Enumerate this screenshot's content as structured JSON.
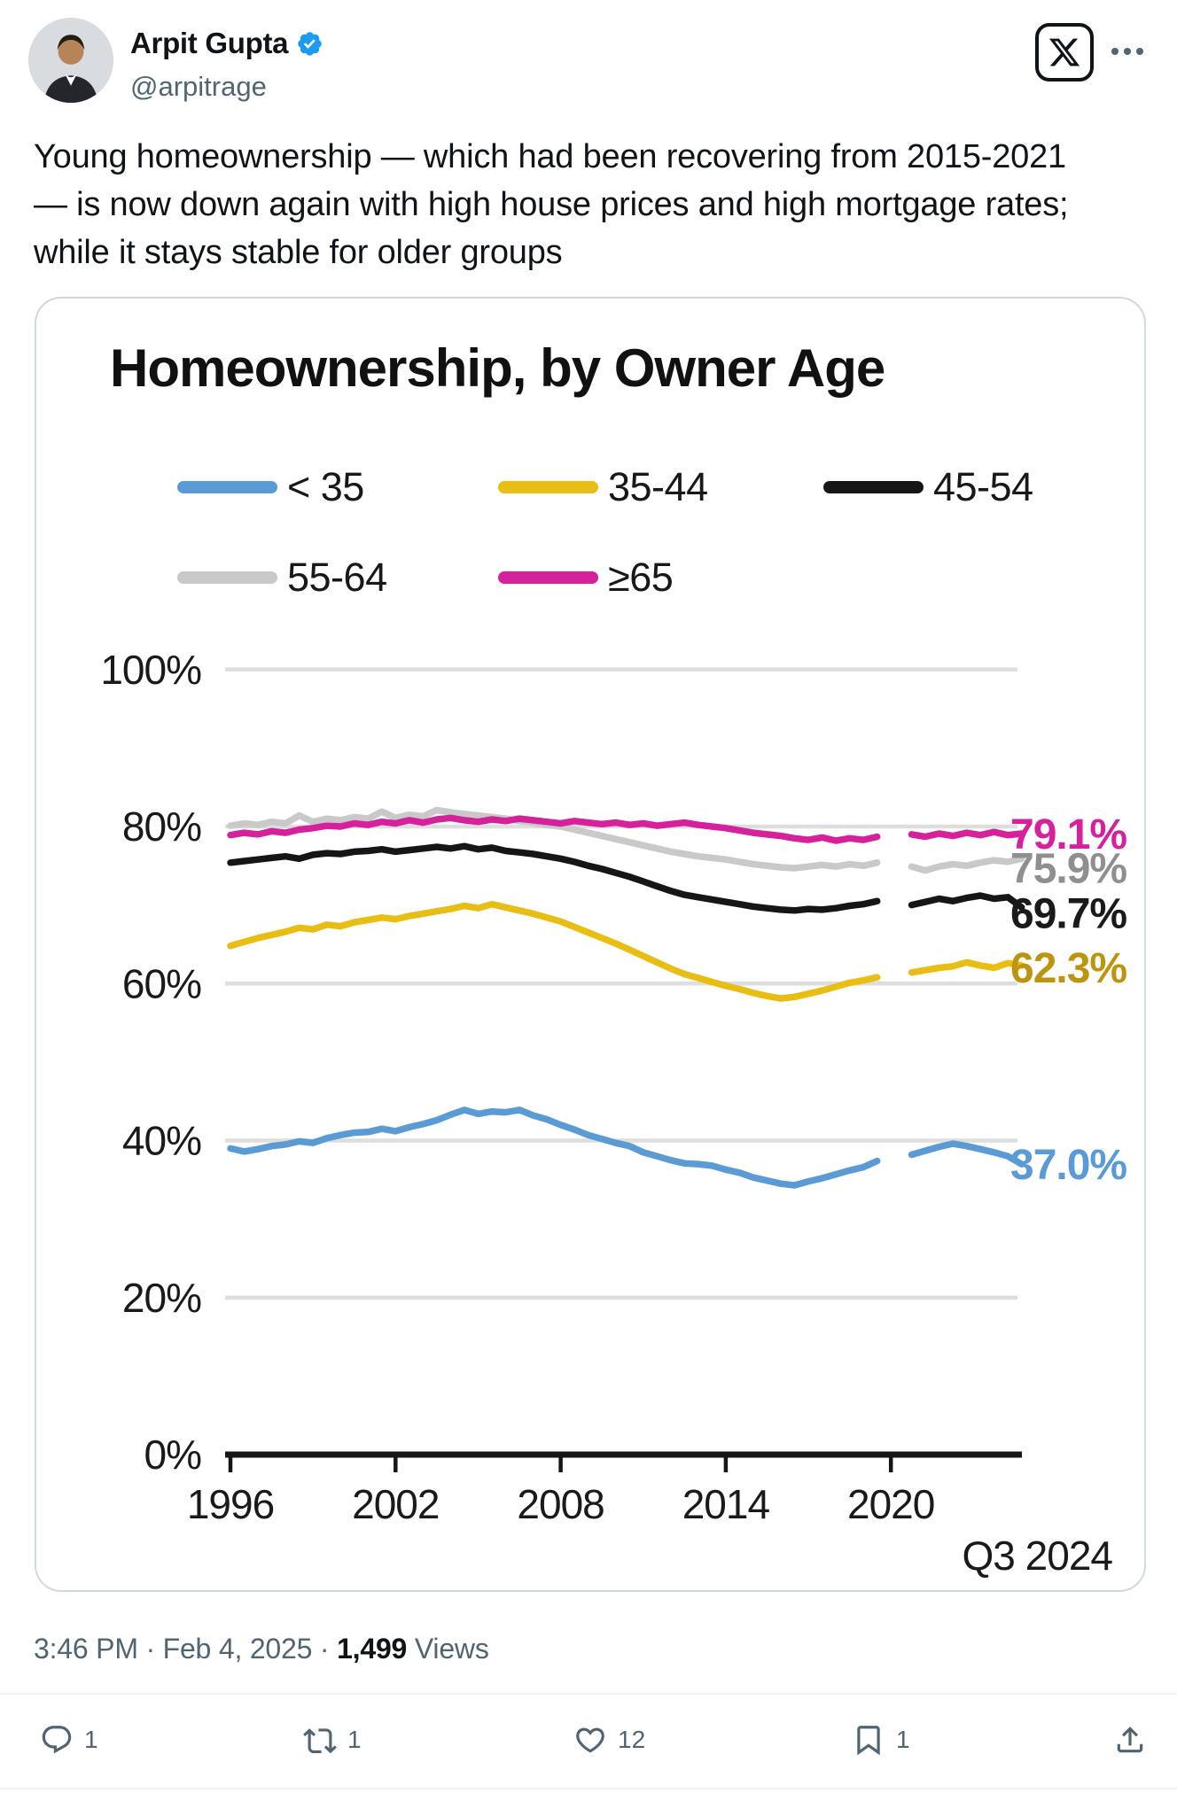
{
  "colors": {
    "accent": "#1d9bf0",
    "text": "#0f1419",
    "secondary": "#536471",
    "card_border": "#cfd9de",
    "divider": "#eff3f4",
    "gridline": "#dedede",
    "axis": "#161616"
  },
  "post": {
    "author": {
      "name": "Arpit Gupta",
      "handle": "@arpitrage",
      "verified_icon": "verified-badge"
    },
    "source_icon": "x-logo",
    "more_icon": "ellipsis",
    "text": "Young homeownership — which had been recovering from 2015-2021\n— is now down again with high house prices and high mortgage rates;\nwhile it stays stable for older groups",
    "timestamp": "3:46 PM · Feb 4, 2025",
    "separator": " · ",
    "views_count": "1,499",
    "views_label": " Views",
    "actions": [
      {
        "name": "reply",
        "icon": "speech-bubble-icon",
        "count": "1"
      },
      {
        "name": "repost",
        "icon": "retweet-icon",
        "count": "1"
      },
      {
        "name": "like",
        "icon": "heart-icon",
        "count": "12"
      },
      {
        "name": "bookmark",
        "icon": "bookmark-icon",
        "count": "1"
      },
      {
        "name": "share",
        "icon": "upload-arrow-icon",
        "count": ""
      }
    ]
  },
  "chart_data": {
    "type": "line",
    "title": "Homeownership, by Owner Age",
    "x_axis": {
      "tick_labels": [
        "1996",
        "2002",
        "2008",
        "2014",
        "2020"
      ],
      "tick_years": [
        1996,
        2002,
        2008,
        2014,
        2020
      ],
      "range": [
        1996,
        2024.75
      ],
      "end_annotation": "Q3 2024"
    },
    "y_axis": {
      "tick_labels": [
        "100%",
        "80%",
        "60%",
        "40%",
        "20%",
        "0%"
      ],
      "tick_values": [
        100,
        80,
        60,
        40,
        20,
        0
      ],
      "range": [
        0,
        100
      ],
      "gridlines": true
    },
    "data_gap_years": [
      2019.75,
      2020.6
    ],
    "legend_rows": [
      [
        "< 35",
        "35-44",
        "45-54"
      ],
      [
        "55-64",
        "≥65"
      ]
    ],
    "series": [
      {
        "name": "< 35",
        "color": "#5b9bd5",
        "end_label": "37.0%",
        "end_label_color": "#5b9bd5",
        "x_start": 1996,
        "x_step": 0.5,
        "values_pre_gap": [
          39.0,
          38.6,
          38.9,
          39.3,
          39.5,
          39.9,
          39.7,
          40.3,
          40.7,
          41.0,
          41.1,
          41.5,
          41.2,
          41.7,
          42.1,
          42.6,
          43.3,
          43.9,
          43.4,
          43.7,
          43.6,
          43.9,
          43.2,
          42.7,
          42.0,
          41.4,
          40.7,
          40.2,
          39.7,
          39.3,
          38.5,
          38.0,
          37.5,
          37.1,
          37.0,
          36.8,
          36.3,
          35.9,
          35.3,
          34.9,
          34.5,
          34.3,
          34.8,
          35.2,
          35.7,
          36.2,
          36.6,
          37.4
        ],
        "x_resume": 2020.75,
        "values_post_gap": [
          38.2,
          38.7,
          39.2,
          39.6,
          39.3,
          38.9,
          38.5,
          38.0,
          37.0
        ]
      },
      {
        "name": "35-44",
        "color": "#e8be14",
        "end_label": "62.3%",
        "end_label_color": "#bd940f",
        "x_start": 1996,
        "x_step": 0.5,
        "values_pre_gap": [
          64.8,
          65.3,
          65.8,
          66.2,
          66.6,
          67.1,
          66.9,
          67.5,
          67.3,
          67.8,
          68.1,
          68.4,
          68.2,
          68.6,
          68.9,
          69.2,
          69.5,
          69.9,
          69.6,
          70.1,
          69.7,
          69.3,
          68.9,
          68.4,
          67.9,
          67.2,
          66.5,
          65.8,
          65.1,
          64.3,
          63.5,
          62.7,
          61.9,
          61.2,
          60.7,
          60.2,
          59.7,
          59.3,
          58.8,
          58.4,
          58.1,
          58.3,
          58.7,
          59.1,
          59.6,
          60.1,
          60.4,
          60.8
        ],
        "x_resume": 2020.75,
        "values_post_gap": [
          61.4,
          61.7,
          62.0,
          62.2,
          62.7,
          62.3,
          62.0,
          62.6,
          62.3
        ]
      },
      {
        "name": "45-54",
        "color": "#161616",
        "end_label": "69.7%",
        "end_label_color": "#1a1a1a",
        "x_start": 1996,
        "x_step": 0.5,
        "values_pre_gap": [
          75.4,
          75.6,
          75.8,
          76.0,
          76.2,
          75.9,
          76.4,
          76.6,
          76.5,
          76.8,
          76.9,
          77.1,
          76.8,
          77.0,
          77.2,
          77.4,
          77.2,
          77.5,
          77.1,
          77.3,
          76.9,
          76.7,
          76.5,
          76.2,
          75.9,
          75.5,
          75.0,
          74.6,
          74.1,
          73.6,
          73.0,
          72.4,
          71.8,
          71.3,
          71.0,
          70.7,
          70.4,
          70.1,
          69.8,
          69.6,
          69.4,
          69.3,
          69.5,
          69.4,
          69.6,
          69.9,
          70.1,
          70.5
        ],
        "x_resume": 2020.75,
        "values_post_gap": [
          70.0,
          70.4,
          70.8,
          70.5,
          70.9,
          71.2,
          70.8,
          71.0,
          69.7
        ]
      },
      {
        "name": "55-64",
        "color": "#c9c9c9",
        "end_label": "75.9%",
        "end_label_color": "#8f8f8f",
        "x_start": 1996,
        "x_step": 0.5,
        "values_pre_gap": [
          80.1,
          80.4,
          80.2,
          80.6,
          80.4,
          81.4,
          80.6,
          81.0,
          80.8,
          81.2,
          81.0,
          81.9,
          81.1,
          81.5,
          81.3,
          82.1,
          81.8,
          81.6,
          81.4,
          81.2,
          81.0,
          80.7,
          80.5,
          80.2,
          80.0,
          79.6,
          79.2,
          78.8,
          78.4,
          78.0,
          77.6,
          77.2,
          76.8,
          76.5,
          76.2,
          76.0,
          75.8,
          75.5,
          75.2,
          75.0,
          74.8,
          74.7,
          74.9,
          75.1,
          74.9,
          75.2,
          75.0,
          75.4
        ],
        "x_resume": 2020.75,
        "values_post_gap": [
          74.9,
          74.4,
          74.9,
          75.2,
          75.0,
          75.4,
          75.7,
          75.5,
          75.9
        ]
      },
      {
        "name": "≥65",
        "color": "#d6219c",
        "end_label": "79.1%",
        "end_label_color": "#d6219c",
        "x_start": 1996,
        "x_step": 0.5,
        "values_pre_gap": [
          78.9,
          79.2,
          79.0,
          79.4,
          79.2,
          79.6,
          79.8,
          80.1,
          80.0,
          80.4,
          80.2,
          80.6,
          80.4,
          80.8,
          80.5,
          80.9,
          81.1,
          80.8,
          80.6,
          80.9,
          80.7,
          81.0,
          80.8,
          80.6,
          80.4,
          80.7,
          80.5,
          80.3,
          80.5,
          80.2,
          80.4,
          80.1,
          80.3,
          80.5,
          80.2,
          80.0,
          79.8,
          79.5,
          79.2,
          79.0,
          78.8,
          78.5,
          78.3,
          78.6,
          78.2,
          78.5,
          78.3,
          78.7
        ],
        "x_resume": 2020.75,
        "values_post_gap": [
          79.0,
          78.7,
          79.1,
          78.8,
          79.2,
          78.9,
          79.3,
          78.9,
          79.1
        ]
      }
    ]
  }
}
